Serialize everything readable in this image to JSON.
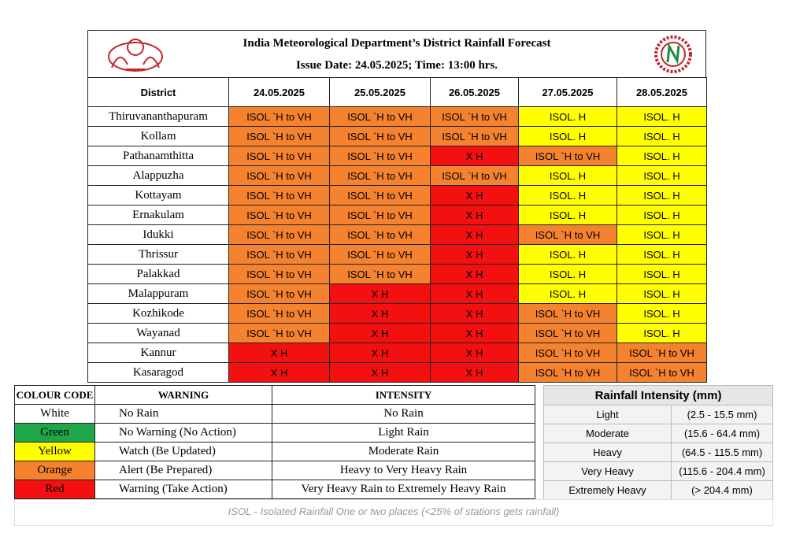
{
  "header": {
    "title": "India Meteorological Department’s District Rainfall Forecast",
    "issue": "Issue Date: 24.05.2025; Time: 13:00 hrs."
  },
  "table": {
    "columns": [
      "District",
      "24.05.2025",
      "25.05.2025",
      "26.05.2025",
      "27.05.2025",
      "28.05.2025"
    ],
    "rows": [
      {
        "district": "Thiruvananthapuram",
        "cells": [
          {
            "text": "ISOL `H to VH",
            "color": "#f4822e"
          },
          {
            "text": "ISOL `H to VH",
            "color": "#f4822e"
          },
          {
            "text": "ISOL `H to VH",
            "color": "#f4822e"
          },
          {
            "text": "ISOL. H",
            "color": "#ffff00"
          },
          {
            "text": "ISOL. H",
            "color": "#ffff00"
          }
        ]
      },
      {
        "district": "Kollam",
        "cells": [
          {
            "text": "ISOL `H to VH",
            "color": "#f4822e"
          },
          {
            "text": "ISOL `H to VH",
            "color": "#f4822e"
          },
          {
            "text": "ISOL `H to VH",
            "color": "#f4822e"
          },
          {
            "text": "ISOL. H",
            "color": "#ffff00"
          },
          {
            "text": "ISOL. H",
            "color": "#ffff00"
          }
        ]
      },
      {
        "district": "Pathanamthitta",
        "cells": [
          {
            "text": "ISOL `H to VH",
            "color": "#f4822e"
          },
          {
            "text": "ISOL `H to VH",
            "color": "#f4822e"
          },
          {
            "text": "X H",
            "color": "#f21010"
          },
          {
            "text": "ISOL `H to VH",
            "color": "#f4822e"
          },
          {
            "text": "ISOL. H",
            "color": "#ffff00"
          }
        ]
      },
      {
        "district": "Alappuzha",
        "cells": [
          {
            "text": "ISOL `H to VH",
            "color": "#f4822e"
          },
          {
            "text": "ISOL `H to VH",
            "color": "#f4822e"
          },
          {
            "text": "ISOL `H to VH",
            "color": "#f4822e"
          },
          {
            "text": "ISOL. H",
            "color": "#ffff00"
          },
          {
            "text": "ISOL. H",
            "color": "#ffff00"
          }
        ]
      },
      {
        "district": "Kottayam",
        "cells": [
          {
            "text": "ISOL `H to VH",
            "color": "#f4822e"
          },
          {
            "text": "ISOL `H to VH",
            "color": "#f4822e"
          },
          {
            "text": "X H",
            "color": "#f21010"
          },
          {
            "text": "ISOL. H",
            "color": "#ffff00"
          },
          {
            "text": "ISOL. H",
            "color": "#ffff00"
          }
        ]
      },
      {
        "district": "Ernakulam",
        "cells": [
          {
            "text": "ISOL `H to VH",
            "color": "#f4822e"
          },
          {
            "text": "ISOL `H to VH",
            "color": "#f4822e"
          },
          {
            "text": "X H",
            "color": "#f21010"
          },
          {
            "text": "ISOL. H",
            "color": "#ffff00"
          },
          {
            "text": "ISOL. H",
            "color": "#ffff00"
          }
        ]
      },
      {
        "district": "Idukki",
        "cells": [
          {
            "text": "ISOL `H to VH",
            "color": "#f4822e"
          },
          {
            "text": "ISOL `H to VH",
            "color": "#f4822e"
          },
          {
            "text": "X H",
            "color": "#f21010"
          },
          {
            "text": "ISOL `H to VH",
            "color": "#f4822e"
          },
          {
            "text": "ISOL. H",
            "color": "#ffff00"
          }
        ]
      },
      {
        "district": "Thrissur",
        "cells": [
          {
            "text": "ISOL `H to VH",
            "color": "#f4822e"
          },
          {
            "text": "ISOL `H to VH",
            "color": "#f4822e"
          },
          {
            "text": "X H",
            "color": "#f21010"
          },
          {
            "text": "ISOL. H",
            "color": "#ffff00"
          },
          {
            "text": "ISOL. H",
            "color": "#ffff00"
          }
        ]
      },
      {
        "district": "Palakkad",
        "cells": [
          {
            "text": "ISOL `H to VH",
            "color": "#f4822e"
          },
          {
            "text": "ISOL `H to VH",
            "color": "#f4822e"
          },
          {
            "text": "X H",
            "color": "#f21010"
          },
          {
            "text": "ISOL. H",
            "color": "#ffff00"
          },
          {
            "text": "ISOL. H",
            "color": "#ffff00"
          }
        ]
      },
      {
        "district": "Malappuram",
        "cells": [
          {
            "text": "ISOL `H to VH",
            "color": "#f4822e"
          },
          {
            "text": "X H",
            "color": "#f21010"
          },
          {
            "text": "X H",
            "color": "#f21010"
          },
          {
            "text": "ISOL. H",
            "color": "#ffff00"
          },
          {
            "text": "ISOL. H",
            "color": "#ffff00"
          }
        ]
      },
      {
        "district": "Kozhikode",
        "cells": [
          {
            "text": "ISOL `H to VH",
            "color": "#f4822e"
          },
          {
            "text": "X H",
            "color": "#f21010"
          },
          {
            "text": "X H",
            "color": "#f21010"
          },
          {
            "text": "ISOL `H to VH",
            "color": "#f4822e"
          },
          {
            "text": "ISOL. H",
            "color": "#ffff00"
          }
        ]
      },
      {
        "district": "Wayanad",
        "cells": [
          {
            "text": "ISOL `H to VH",
            "color": "#f4822e"
          },
          {
            "text": "X H",
            "color": "#f21010"
          },
          {
            "text": "X H",
            "color": "#f21010"
          },
          {
            "text": "ISOL `H to VH",
            "color": "#f4822e"
          },
          {
            "text": "ISOL. H",
            "color": "#ffff00"
          }
        ]
      },
      {
        "district": "Kannur",
        "cells": [
          {
            "text": "X H",
            "color": "#f21010"
          },
          {
            "text": "X H",
            "color": "#f21010"
          },
          {
            "text": "X H",
            "color": "#f21010"
          },
          {
            "text": "ISOL `H to VH",
            "color": "#f4822e"
          },
          {
            "text": "ISOL `H to VH",
            "color": "#f4822e"
          }
        ]
      },
      {
        "district": "Kasaragod",
        "cells": [
          {
            "text": "X H",
            "color": "#f21010"
          },
          {
            "text": "X H",
            "color": "#f21010"
          },
          {
            "text": "X H",
            "color": "#f21010"
          },
          {
            "text": "ISOL `H to VH",
            "color": "#f4822e"
          },
          {
            "text": "ISOL `H to VH",
            "color": "#f4822e"
          }
        ]
      }
    ]
  },
  "legend": {
    "columns": [
      "COLOUR CODE",
      "WARNING",
      "INTENSITY"
    ],
    "rows": [
      {
        "code": "White",
        "color": "#ffffff",
        "warning": "No Rain",
        "intensity": "No Rain"
      },
      {
        "code": "Green",
        "color": "#1fa64a",
        "warning": "No Warning (No Action)",
        "intensity": "Light Rain"
      },
      {
        "code": "Yellow",
        "color": "#ffff00",
        "warning": "Watch (Be Updated)",
        "intensity": "Moderate Rain"
      },
      {
        "code": "Orange",
        "color": "#f4822e",
        "warning": "Alert (Be Prepared)",
        "intensity": "Heavy to Very Heavy Rain"
      },
      {
        "code": "Red",
        "color": "#f21010",
        "warning": "Warning (Take Action)",
        "intensity": "Very Heavy Rain to Extremely Heavy Rain"
      }
    ]
  },
  "intensity": {
    "title": "Rainfall Intensity (mm)",
    "rows": [
      [
        "Light",
        "(2.5 - 15.5 mm)"
      ],
      [
        "Moderate",
        "(15.6 - 64.4 mm)"
      ],
      [
        "Heavy",
        "(64.5 - 115.5 mm)"
      ],
      [
        "Very Heavy",
        "(115.6 - 204.4 mm)"
      ],
      [
        "Extremely Heavy",
        "(> 204.4 mm)"
      ]
    ]
  },
  "footer": {
    "note": "ISOL - Isolated Rainfall One or two places (<25% of stations gets rainfall)"
  }
}
